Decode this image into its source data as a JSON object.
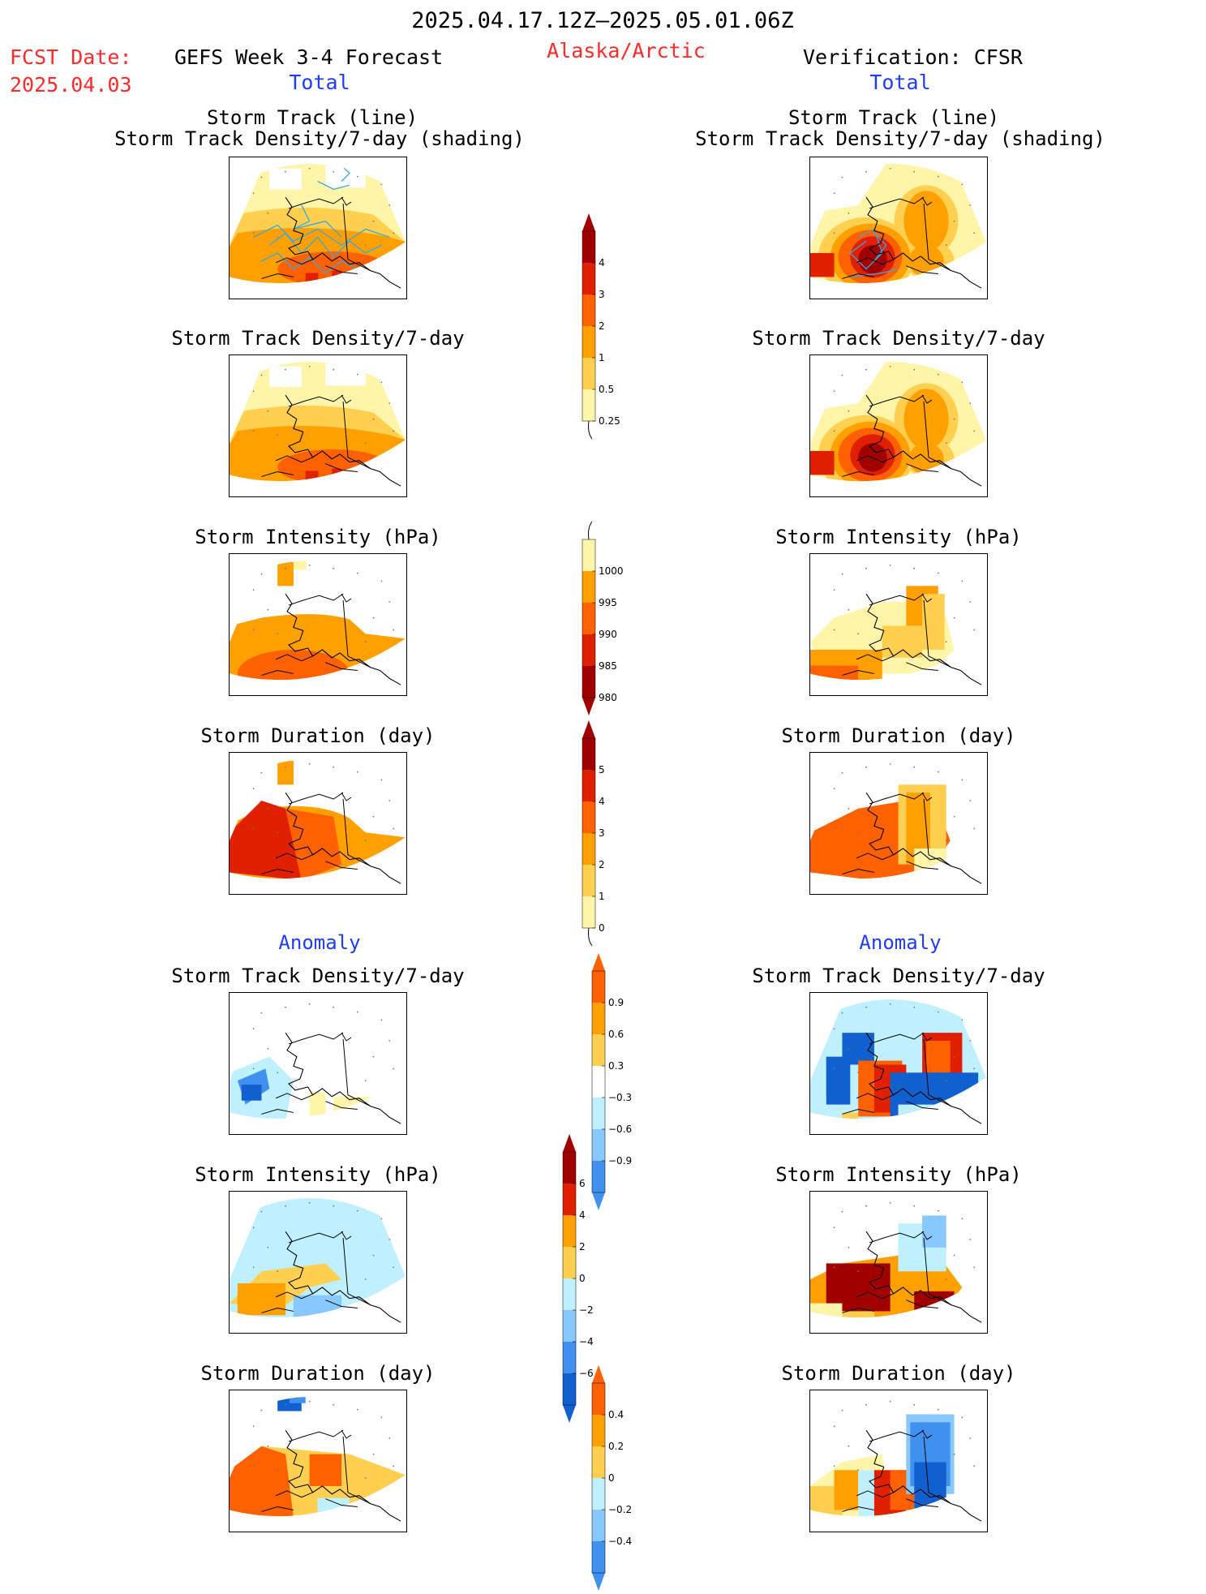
{
  "header": {
    "period": "2025.04.17.12Z–2025.05.01.06Z",
    "fcst_label": "FCST Date:",
    "fcst_date": "2025.04.03",
    "left_title": "GEFS Week 3-4 Forecast",
    "region": "Alaska/Arctic",
    "right_title": "Verification: CFSR",
    "total_left": "Total",
    "total_right": "Total",
    "anomaly_left": "Anomaly",
    "anomaly_right": "Anomaly"
  },
  "panels": {
    "track_title1": "Storm Track (line)",
    "track_title2": "Storm Track Density/7-day (shading)",
    "density": "Storm Track Density/7-day",
    "intensity": "Storm Intensity (hPa)",
    "duration": "Storm Duration (day)"
  },
  "colors": {
    "pale": "#fff5a8",
    "light": "#ffd050",
    "orange": "#ffa000",
    "dorange": "#ff6000",
    "red": "#e02000",
    "dred": "#a00000",
    "lblue": "#bff0ff",
    "mblue": "#88c8ff",
    "blue": "#4090f0",
    "dblue": "#1060d0",
    "track": "#36a9e1"
  },
  "chart_data": [
    {
      "type": "heatmap",
      "name": "Storm Track Density/7-day colorbar",
      "ticks": [
        "4",
        "3",
        "2",
        "1",
        "0.5",
        "0.25"
      ]
    },
    {
      "type": "heatmap",
      "name": "Storm Intensity (hPa) colorbar",
      "ticks": [
        "1000",
        "995",
        "990",
        "985",
        "980"
      ]
    },
    {
      "type": "heatmap",
      "name": "Storm Duration (day) colorbar",
      "ticks": [
        "5",
        "4",
        "3",
        "2",
        "1",
        "0"
      ]
    },
    {
      "type": "heatmap",
      "name": "Storm Track Density anomaly colorbar",
      "ticks": [
        "0.9",
        "0.6",
        "0.3",
        "−0.3",
        "−0.6",
        "−0.9"
      ]
    },
    {
      "type": "heatmap",
      "name": "Storm Intensity anomaly colorbar",
      "ticks": [
        "6",
        "4",
        "2",
        "0",
        "−2",
        "−4",
        "−6"
      ]
    },
    {
      "type": "heatmap",
      "name": "Storm Duration anomaly colorbar",
      "ticks": [
        "0.4",
        "0.2",
        "0",
        "−0.2",
        "−0.4"
      ]
    }
  ]
}
